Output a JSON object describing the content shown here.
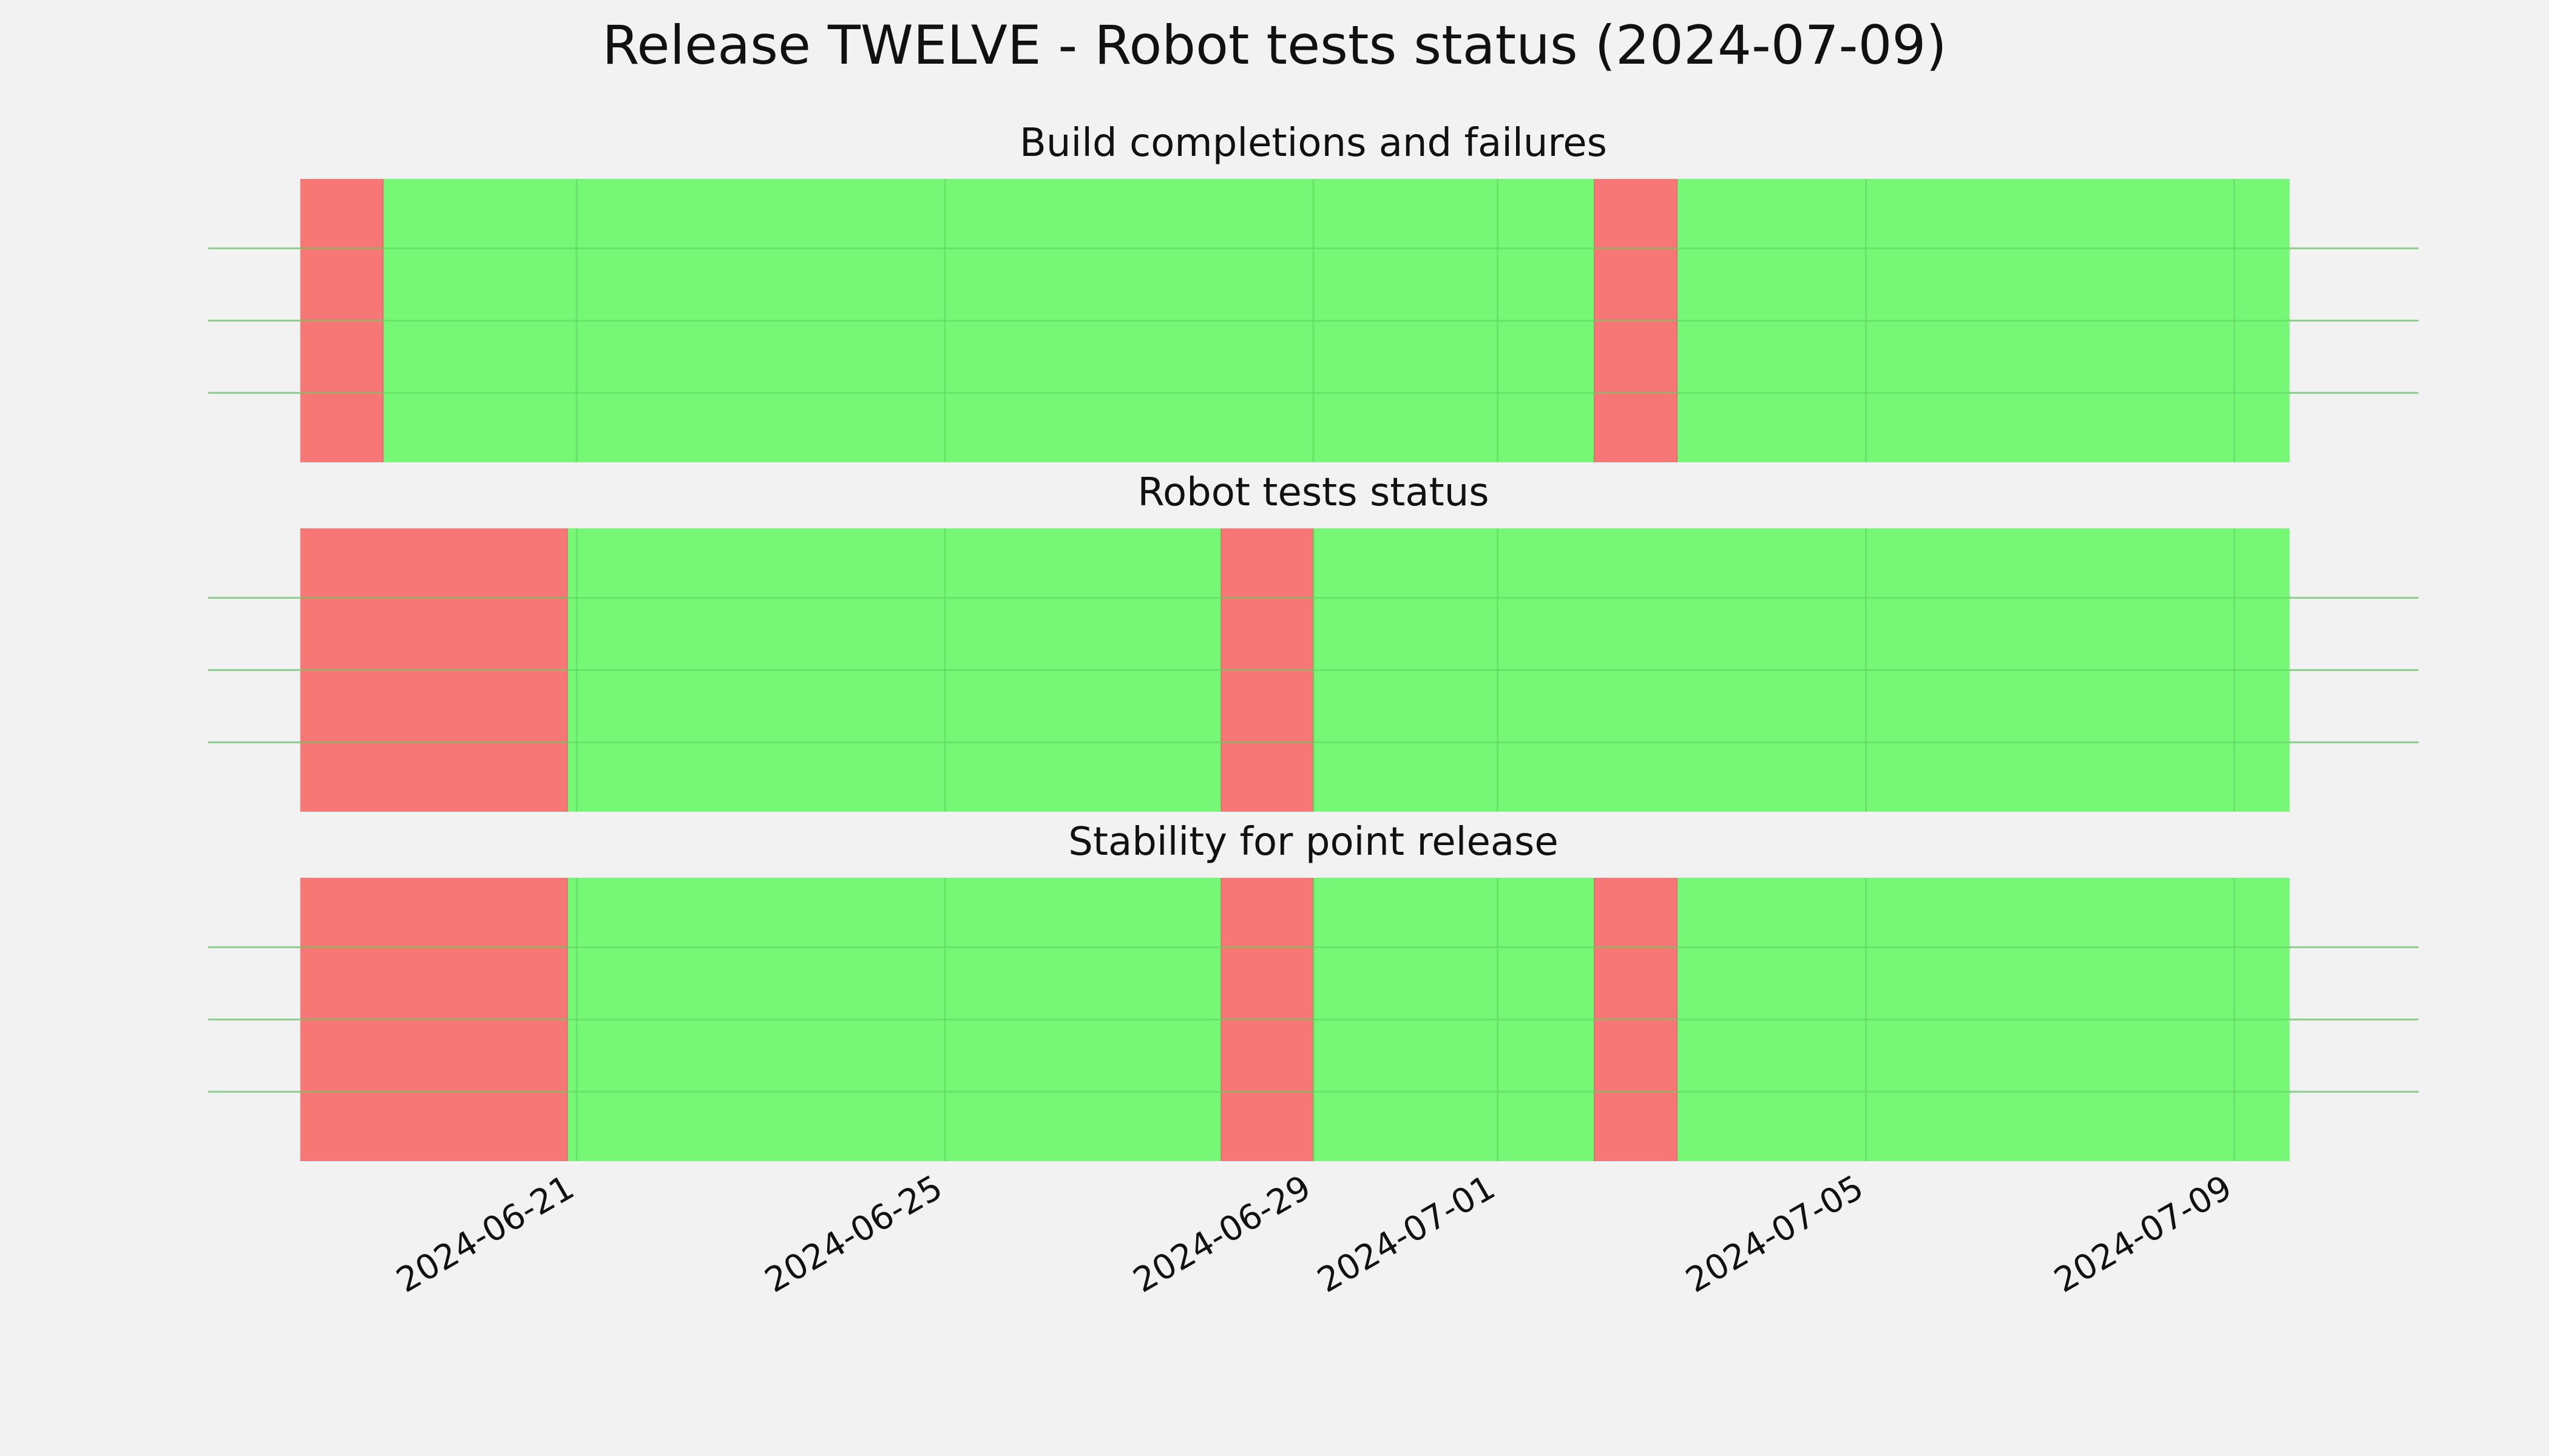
{
  "figure": {
    "title": "Release TWELVE - Robot tests status (2024-07-09)"
  },
  "colors": {
    "background": "#f2f2f2",
    "pass": "#76f776",
    "fail": "#f77676",
    "grid": "#c8c8c8",
    "grid_on_fill": "#5fd35f"
  },
  "chart_data": [
    {
      "type": "timeline",
      "title": "Build completions and failures",
      "xlim": [
        "2024-06-17",
        "2024-07-11"
      ],
      "grid": true,
      "segments": [
        {
          "start": "2024-06-18",
          "end": "2024-06-18T21:36",
          "status": "fail"
        },
        {
          "start": "2024-06-18T21:36",
          "end": "2024-07-02T01:12",
          "status": "pass"
        },
        {
          "start": "2024-07-02T01:12",
          "end": "2024-07-02T22:48",
          "status": "fail"
        },
        {
          "start": "2024-07-02T22:48",
          "end": "2024-07-09T14:24",
          "status": "pass"
        }
      ]
    },
    {
      "type": "timeline",
      "title": "Robot tests status",
      "xlim": [
        "2024-06-17",
        "2024-07-11"
      ],
      "grid": true,
      "segments": [
        {
          "start": "2024-06-18",
          "end": "2024-06-20T21:36",
          "status": "fail"
        },
        {
          "start": "2024-06-20T21:36",
          "end": "2024-06-27T23:59",
          "status": "pass"
        },
        {
          "start": "2024-06-27T23:59",
          "end": "2024-06-29",
          "status": "fail"
        },
        {
          "start": "2024-06-29",
          "end": "2024-07-09T14:24",
          "status": "pass"
        }
      ]
    },
    {
      "type": "timeline",
      "title": "Stability for point release",
      "xlim": [
        "2024-06-17",
        "2024-07-11"
      ],
      "grid": true,
      "segments": [
        {
          "start": "2024-06-18",
          "end": "2024-06-20T21:36",
          "status": "fail"
        },
        {
          "start": "2024-06-20T21:36",
          "end": "2024-06-27T23:59",
          "status": "pass"
        },
        {
          "start": "2024-06-27T23:59",
          "end": "2024-06-29",
          "status": "fail"
        },
        {
          "start": "2024-06-29",
          "end": "2024-07-02T01:12",
          "status": "pass"
        },
        {
          "start": "2024-07-02T01:12",
          "end": "2024-07-02T22:48",
          "status": "fail"
        },
        {
          "start": "2024-07-02T22:48",
          "end": "2024-07-09T14:24",
          "status": "pass"
        }
      ]
    }
  ],
  "x_ticks": [
    {
      "value": "2024-06-21",
      "label": "2024-06-21"
    },
    {
      "value": "2024-06-25",
      "label": "2024-06-25"
    },
    {
      "value": "2024-06-29",
      "label": "2024-06-29"
    },
    {
      "value": "2024-07-01",
      "label": "2024-07-01"
    },
    {
      "value": "2024-07-05",
      "label": "2024-07-05"
    },
    {
      "value": "2024-07-09",
      "label": "2024-07-09"
    }
  ]
}
